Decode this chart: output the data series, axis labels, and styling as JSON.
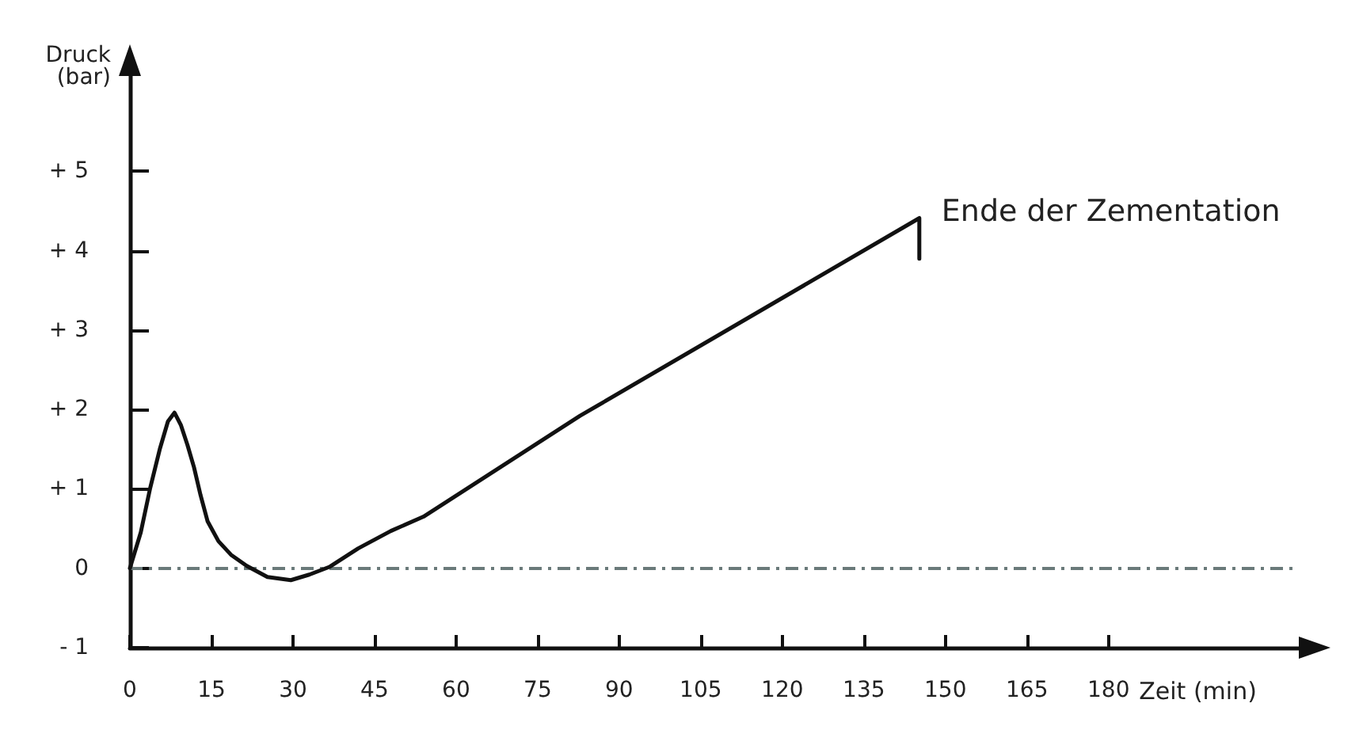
{
  "chart_data": {
    "type": "line",
    "xlabel": "Zeit (min)",
    "ylabel": "Druck (bar)",
    "x": [
      0,
      2,
      3.7,
      5.5,
      7,
      8.2,
      9.4,
      10.6,
      11.8,
      13,
      14.3,
      16.3,
      18.6,
      21.5,
      25.3,
      29.6,
      33,
      36.8,
      42,
      48,
      54,
      82.8,
      145.2,
      145.2
    ],
    "series": [
      {
        "color": "#111111",
        "values": [
          0,
          0.45,
          1.0,
          1.5,
          1.85,
          1.96,
          1.8,
          1.55,
          1.27,
          0.92,
          0.59,
          0.34,
          0.17,
          0.03,
          -0.11,
          -0.15,
          -0.08,
          0.02,
          0.25,
          0.47,
          0.65,
          1.92,
          4.41,
          3.9
        ]
      }
    ],
    "xlim": [
      0,
      215
    ],
    "xticks": [
      0,
      15,
      30,
      45,
      60,
      75,
      90,
      105,
      120,
      135,
      150,
      165,
      180
    ],
    "ylim": [
      -1,
      6.2
    ],
    "yticks": [
      {
        "value": -1,
        "label": "- 1"
      },
      {
        "value": 0,
        "label": "0"
      },
      {
        "value": 1,
        "label": "+ 1"
      },
      {
        "value": 2,
        "label": "+ 2"
      },
      {
        "value": 3,
        "label": "+ 3"
      },
      {
        "value": 4,
        "label": "+ 4"
      },
      {
        "value": 5,
        "label": "+ 5"
      }
    ],
    "ref_lines": [
      {
        "axis": "y",
        "value": 0,
        "color": "#6a7a7a",
        "line_style": "dashed"
      }
    ],
    "annotations": [
      {
        "text": "Ende der Zementation",
        "x": 145.2,
        "y": 4.41
      }
    ],
    "grid": false,
    "marker": "none",
    "line_style": "solid"
  }
}
